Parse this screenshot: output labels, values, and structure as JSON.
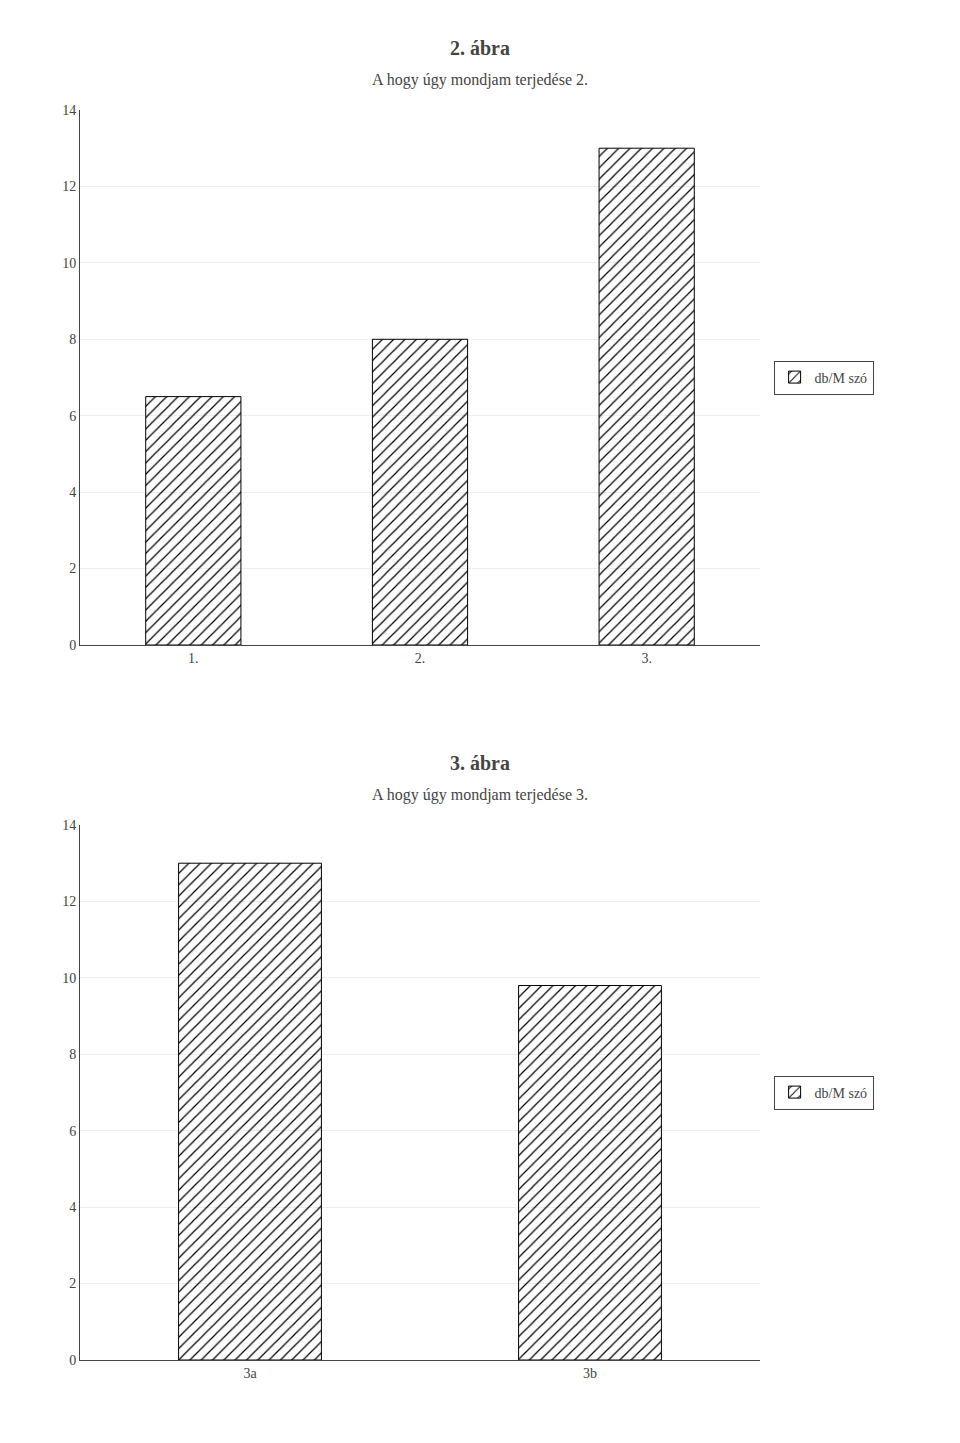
{
  "chart_data": [
    {
      "type": "bar",
      "title": "2. ábra",
      "subtitle": "A hogy úgy mondjam terjedése 2.",
      "categories": [
        "1.",
        "2.",
        "3."
      ],
      "series": [
        {
          "name": "db/M szó",
          "color": "#c8c8c8",
          "values": [
            6.5,
            8.0,
            13.0
          ]
        }
      ],
      "ylim": [
        0,
        14
      ],
      "yticks": [
        0,
        2,
        4,
        6,
        8,
        10,
        12,
        14
      ],
      "grid": true,
      "legend": "right"
    },
    {
      "type": "bar",
      "title": "3. ábra",
      "subtitle": "A hogy úgy mondjam terjedése 3.",
      "categories": [
        "3a",
        "3b"
      ],
      "series": [
        {
          "name": "db/M szó",
          "color": "#c8c8c8",
          "values": [
            13.0,
            9.8
          ]
        }
      ],
      "ylim": [
        0,
        14
      ],
      "yticks": [
        0,
        2,
        4,
        6,
        8,
        10,
        12,
        14
      ],
      "grid": true,
      "legend": "right"
    }
  ]
}
